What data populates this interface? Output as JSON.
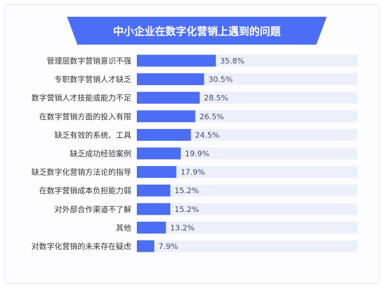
{
  "chart_data": {
    "type": "bar",
    "orientation": "horizontal",
    "title": "中小企业在数字化营销上遇到的问题",
    "categories": [
      "管理层数字营销意识不强",
      "专职数字营销人才缺乏",
      "数字营销人才技能或能力不足",
      "在数字营销方面的投入有限",
      "缺乏有效的系统、工具",
      "缺乏成功经验案例",
      "缺乏数字化营销方法论的指导",
      "在数字营销成本负担能力弱",
      "对外部合作渠道不了解",
      "其他",
      "对数字化营销的未来存在疑虑"
    ],
    "values": [
      35.8,
      30.5,
      28.5,
      26.5,
      24.5,
      19.9,
      17.9,
      15.2,
      15.2,
      13.2,
      7.9
    ],
    "value_labels": [
      "35.8%",
      "30.5%",
      "28.5%",
      "26.5%",
      "24.5%",
      "19.9%",
      "17.9%",
      "15.2%",
      "15.2%",
      "13.2%",
      "7.9%"
    ],
    "xlim": [
      0,
      100
    ],
    "unit": "%",
    "grid": false,
    "legend": "none",
    "colors": {
      "bar": "#4c6ef5",
      "track": "#edf0fb",
      "banner": "#4c6ef5",
      "label_text": "#333333",
      "value_text": "#3b4a6b"
    }
  }
}
